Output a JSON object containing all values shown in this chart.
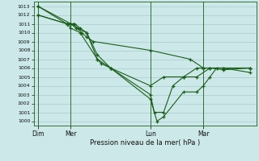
{
  "xlabel": "Pression niveau de la mer( hPa )",
  "bg_color": "#cce8e8",
  "grid_color": "#a8cccc",
  "line_color": "#1a5e1a",
  "ylim": [
    999.5,
    1013.5
  ],
  "yticks": [
    1000,
    1001,
    1002,
    1003,
    1004,
    1005,
    1006,
    1007,
    1008,
    1009,
    1010,
    1011,
    1012,
    1013
  ],
  "xtick_labels": [
    "Dim",
    "Mer",
    "Lun",
    "Mar"
  ],
  "xtick_positions": [
    0,
    2.5,
    8.5,
    12.5
  ],
  "xlim": [
    -0.3,
    16.5
  ],
  "lines": [
    {
      "x": [
        0,
        2.5,
        2.7,
        3.0,
        3.3,
        3.7,
        4.2,
        8.5,
        11.5,
        12.5,
        16.0
      ],
      "y": [
        1013,
        1011,
        1011,
        1010.5,
        1010,
        1009.5,
        1009,
        1008,
        1007,
        1006,
        1006
      ]
    },
    {
      "x": [
        0,
        2.2,
        2.5,
        2.8,
        3.2,
        3.7,
        4.5,
        5.5,
        8.5,
        9.0,
        9.5,
        11.0,
        12.0,
        12.5,
        13.0,
        13.5,
        14.0,
        16.0
      ],
      "y": [
        1012,
        1011,
        1011,
        1011,
        1010.5,
        1010,
        1007.5,
        1006,
        1002.5,
        1000,
        1000.5,
        1003.3,
        1003.3,
        1004,
        1005,
        1006,
        1006,
        1006
      ]
    },
    {
      "x": [
        0,
        2.2,
        2.5,
        2.9,
        3.7,
        4.5,
        5.5,
        8.5,
        8.8,
        9.5,
        10.2,
        11.0,
        12.0,
        13.0,
        14.0,
        16.0
      ],
      "y": [
        1012,
        1011,
        1011,
        1010.5,
        1010,
        1007,
        1006,
        1003,
        1001,
        1001,
        1004,
        1005,
        1005,
        1006,
        1006,
        1005.5
      ]
    },
    {
      "x": [
        0,
        2.2,
        2.5,
        3.2,
        4.5,
        4.8,
        5.5,
        8.5,
        9.5,
        11.0,
        12.0,
        12.5,
        13.0,
        14.0,
        16.0
      ],
      "y": [
        1013,
        1011,
        1010.5,
        1010,
        1007,
        1006.5,
        1006,
        1004,
        1005,
        1005,
        1006,
        1006,
        1006,
        1005.8,
        1006
      ]
    }
  ]
}
